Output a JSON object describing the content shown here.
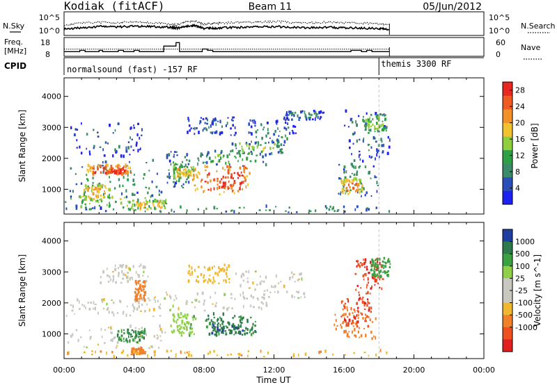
{
  "header": {
    "station": "Kodiak (fitACF)",
    "beam": "Beam 11",
    "date": "05/Jun/2012"
  },
  "chart_data": [
    {
      "type": "line",
      "panel": "noise",
      "left_label": "N.Sky",
      "right_label": "N.Search",
      "left_ticks": [
        "10^5",
        "10^0"
      ],
      "right_ticks": [
        "10^5",
        "10^0"
      ],
      "x": [
        0.0,
        1.0,
        2.0,
        3.0,
        4.0,
        5.0,
        6.0,
        6.5,
        7.0,
        7.5,
        8.0,
        8.5,
        9.0,
        10.0,
        11.0,
        12.0,
        13.0,
        14.0,
        15.0,
        16.0,
        17.0,
        18.0,
        18.6
      ],
      "series": [
        {
          "name": "N.Sky",
          "style": "solid",
          "values": [
            1.2,
            1.5,
            1.8,
            1.7,
            1.9,
            1.8,
            1.6,
            1.4,
            1.9,
            2.0,
            1.3,
            1.4,
            1.5,
            1.6,
            1.7,
            1.8,
            1.6,
            1.5,
            1.6,
            1.5,
            1.4,
            1.3,
            1.2
          ]
        },
        {
          "name": "N.Search",
          "style": "dotted",
          "values": [
            2.2,
            2.6,
            2.8,
            2.7,
            2.9,
            2.8,
            2.4,
            2.2,
            3.0,
            3.1,
            2.4,
            2.5,
            2.6,
            2.8,
            2.9,
            3.0,
            2.8,
            2.7,
            2.8,
            2.7,
            2.6,
            2.4,
            2.3
          ]
        }
      ],
      "ylim": [
        0,
        5
      ]
    },
    {
      "type": "line",
      "panel": "freq-nave",
      "left_label_lines": [
        "Freq.",
        "[MHz]"
      ],
      "right_label": "Nave",
      "left_ticks": [
        "18",
        "8"
      ],
      "right_ticks": [
        "60",
        "0"
      ],
      "freq_x": [
        0.0,
        0.9,
        1.2,
        2.0,
        2.2,
        3.1,
        3.4,
        4.0,
        4.3,
        5.5,
        5.7,
        6.4,
        6.6,
        7.6,
        7.9,
        8.2,
        8.5,
        9.5,
        10.0,
        16.0,
        16.4,
        17.0,
        17.3,
        17.6,
        18.6
      ],
      "freq_mhz": [
        10.3,
        11.0,
        10.3,
        11.0,
        10.3,
        11.0,
        10.3,
        11.0,
        10.3,
        10.3,
        13.5,
        15.5,
        10.3,
        10.3,
        11.8,
        11.0,
        10.3,
        10.3,
        10.3,
        10.3,
        11.0,
        10.3,
        11.0,
        10.3,
        10.3
      ],
      "nave_x": [
        0.0,
        18.6
      ],
      "nave": [
        22,
        22
      ],
      "freq_ylim": [
        8,
        18
      ],
      "nave_ylim": [
        0,
        60
      ]
    },
    {
      "type": "table",
      "panel": "cpid",
      "label": "CPID",
      "segments": [
        {
          "start_ut": 0.0,
          "label": "normalsound (fast) -157 RF"
        },
        {
          "start_ut": 18.0,
          "label": "themis 3300 RF"
        }
      ]
    },
    {
      "type": "heatmap",
      "panel": "power",
      "ylabel": "Slant Range [km]",
      "colorbar_label": "Power [dB]",
      "colorbar_ticks": [
        4,
        8,
        12,
        16,
        20,
        24,
        28
      ],
      "colorbar_colors": [
        "#1e22f0",
        "#2a4fb8",
        "#3b8a6a",
        "#2fa045",
        "#8fce3c",
        "#f2c230",
        "#f2902a",
        "#ee5a22",
        "#e82820"
      ],
      "zlim": [
        0,
        30
      ],
      "ylim": [
        200,
        4600
      ],
      "yticks": [
        1000,
        2000,
        3000,
        4000
      ],
      "blobs": [
        {
          "t0": 0.0,
          "t1": 5.8,
          "r0": 300,
          "r1": 800,
          "level": 14
        },
        {
          "t0": 0.2,
          "t1": 5.8,
          "r0": 700,
          "r1": 1900,
          "level": 11
        },
        {
          "t0": 1.2,
          "t1": 3.8,
          "r0": 1400,
          "r1": 1750,
          "level": 26
        },
        {
          "t0": 2.4,
          "t1": 3.6,
          "r0": 1450,
          "r1": 1600,
          "level": 28
        },
        {
          "t0": 0.3,
          "t1": 4.6,
          "r0": 2000,
          "r1": 3100,
          "level": 6
        },
        {
          "t0": 1.0,
          "t1": 2.6,
          "r0": 600,
          "r1": 1100,
          "level": 20
        },
        {
          "t0": 3.8,
          "t1": 5.8,
          "r0": 300,
          "r1": 600,
          "level": 20
        },
        {
          "t0": 5.8,
          "t1": 7.2,
          "r0": 1000,
          "r1": 2200,
          "level": 10
        },
        {
          "t0": 6.2,
          "t1": 7.4,
          "r0": 1300,
          "r1": 1700,
          "level": 18
        },
        {
          "t0": 7.3,
          "t1": 10.6,
          "r0": 800,
          "r1": 1700,
          "level": 25
        },
        {
          "t0": 8.6,
          "t1": 10.4,
          "r0": 900,
          "r1": 1700,
          "level": 28
        },
        {
          "t0": 7.6,
          "t1": 11.6,
          "r0": 1700,
          "r1": 2200,
          "level": 12
        },
        {
          "t0": 9.5,
          "t1": 12.5,
          "r0": 2100,
          "r1": 2500,
          "level": 14
        },
        {
          "t0": 10.5,
          "t1": 13.2,
          "r0": 2400,
          "r1": 3200,
          "level": 8
        },
        {
          "t0": 7.0,
          "t1": 9.8,
          "r0": 2700,
          "r1": 3300,
          "level": 6
        },
        {
          "t0": 12.5,
          "t1": 14.8,
          "r0": 3200,
          "r1": 3500,
          "level": 8
        },
        {
          "t0": 15.6,
          "t1": 18.0,
          "r0": 700,
          "r1": 2000,
          "level": 10
        },
        {
          "t0": 15.8,
          "t1": 17.0,
          "r0": 800,
          "r1": 1300,
          "level": 22
        },
        {
          "t0": 16.0,
          "t1": 18.6,
          "r0": 2000,
          "r1": 3500,
          "level": 8
        },
        {
          "t0": 17.0,
          "t1": 18.4,
          "r0": 2800,
          "r1": 3400,
          "level": 14
        },
        {
          "t0": 0.0,
          "t1": 18.6,
          "r0": 220,
          "r1": 420,
          "level": 10
        }
      ]
    },
    {
      "type": "heatmap",
      "panel": "velocity",
      "ylabel": "Slant Range [km]",
      "colorbar_label": "Velocity [m s^-1]",
      "colorbar_ticks": [
        "1000",
        "500",
        "100",
        "25",
        "-25",
        "-100",
        "-500",
        "-1000"
      ],
      "colorbar_colors": [
        "#1e3ea0",
        "#2d7a4a",
        "#3aa040",
        "#8fd04a",
        "#c8c8c0",
        "#c8c8c0",
        "#f0b830",
        "#f0802a",
        "#ee5020",
        "#e02020"
      ],
      "zlim": [
        -1200,
        1200
      ],
      "ylim": [
        200,
        4600
      ],
      "yticks": [
        1000,
        2000,
        3000,
        4000
      ],
      "xticks": [
        "00:00",
        "04:00",
        "08:00",
        "12:00",
        "16:00",
        "20:00",
        "00:00"
      ],
      "xlim": [
        0,
        24
      ],
      "xlabel": "Time UT",
      "blobs": [
        {
          "t0": 0.0,
          "t1": 5.8,
          "r0": 1500,
          "r1": 2100,
          "vel": 0
        },
        {
          "t0": 4.0,
          "t1": 11.6,
          "r0": 1700,
          "r1": 2300,
          "vel": 0
        },
        {
          "t0": 9.5,
          "t1": 13.8,
          "r0": 2100,
          "r1": 3000,
          "vel": 0
        },
        {
          "t0": 2.0,
          "t1": 4.8,
          "r0": 2600,
          "r1": 3200,
          "vel": 0
        },
        {
          "t0": 0.2,
          "t1": 5.8,
          "r0": 500,
          "r1": 1200,
          "vel": 0
        },
        {
          "t0": 3.0,
          "t1": 4.6,
          "r0": 700,
          "r1": 1100,
          "vel": 400
        },
        {
          "t0": 6.0,
          "t1": 7.5,
          "r0": 900,
          "r1": 1600,
          "vel": 80
        },
        {
          "t0": 8.0,
          "t1": 11.0,
          "r0": 900,
          "r1": 1600,
          "vel": 500
        },
        {
          "t0": 8.4,
          "t1": 10.6,
          "r0": 900,
          "r1": 1400,
          "vel": 700
        },
        {
          "t0": 4.0,
          "t1": 4.6,
          "r0": 2000,
          "r1": 2700,
          "vel": -300
        },
        {
          "t0": 3.8,
          "t1": 4.6,
          "r0": 300,
          "r1": 500,
          "vel": -150
        },
        {
          "t0": 7.0,
          "t1": 9.5,
          "r0": 2600,
          "r1": 3200,
          "vel": -60
        },
        {
          "t0": 15.4,
          "t1": 17.8,
          "r0": 800,
          "r1": 1800,
          "vel": -250
        },
        {
          "t0": 15.8,
          "t1": 17.6,
          "r0": 1200,
          "r1": 2400,
          "vel": -700
        },
        {
          "t0": 16.6,
          "t1": 18.2,
          "r0": 2400,
          "r1": 3400,
          "vel": -800
        },
        {
          "t0": 17.5,
          "t1": 18.6,
          "r0": 2800,
          "r1": 3400,
          "vel": 300
        },
        {
          "t0": 0.0,
          "t1": 18.6,
          "r0": 220,
          "r1": 420,
          "vel": -80
        }
      ]
    }
  ]
}
